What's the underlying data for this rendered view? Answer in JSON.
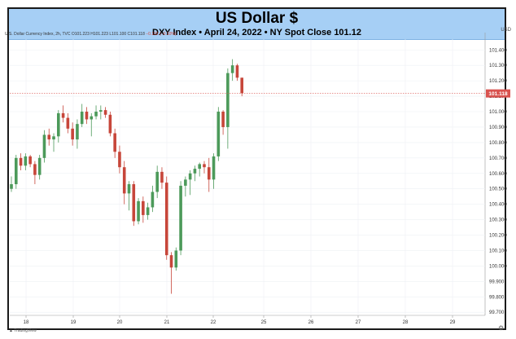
{
  "header": {
    "title": "US Dollar $",
    "subtitle": "DXY Index • April 24, 2022 • NY Spot Close 101.12"
  },
  "infoline": {
    "text": "U.S. Dollar Currency Index, 2h, TVC",
    "ohlc": "O101.223 H101.223 L101.100 C101.118",
    "change": "−0.102 (−0.10%)"
  },
  "axis_currency": "USD",
  "last_price_label": "101.118",
  "footer": {
    "logo_text": "TradingView"
  },
  "colors": {
    "up": "#4c9a5a",
    "down": "#c7463a",
    "header_bg": "#a6cff5",
    "price_tag": "#d9534f"
  },
  "chart_data": {
    "type": "candlestick",
    "title": "US Dollar $",
    "subtitle": "DXY Index • April 24, 2022 • NY Spot Close 101.12",
    "x_ticks": [
      "18",
      "19",
      "20",
      "21",
      "22",
      "25",
      "26",
      "27",
      "28",
      "29"
    ],
    "y_ticks": [
      "99.700",
      "99.800",
      "99.900",
      "100.000",
      "100.100",
      "100.200",
      "100.300",
      "100.400",
      "100.500",
      "100.600",
      "100.700",
      "100.800",
      "100.900",
      "101.000",
      "101.100",
      "101.200",
      "101.300",
      "101.400"
    ],
    "ylim": [
      99.68,
      101.47
    ],
    "last_price": 101.118,
    "candles": [
      {
        "o": 100.5,
        "h": 100.58,
        "l": 100.48,
        "c": 100.53
      },
      {
        "o": 100.53,
        "h": 100.72,
        "l": 100.5,
        "c": 100.7
      },
      {
        "o": 100.7,
        "h": 100.73,
        "l": 100.62,
        "c": 100.65
      },
      {
        "o": 100.65,
        "h": 100.73,
        "l": 100.62,
        "c": 100.71
      },
      {
        "o": 100.71,
        "h": 100.72,
        "l": 100.64,
        "c": 100.66
      },
      {
        "o": 100.66,
        "h": 100.68,
        "l": 100.53,
        "c": 100.59
      },
      {
        "o": 100.59,
        "h": 100.72,
        "l": 100.56,
        "c": 100.7
      },
      {
        "o": 100.7,
        "h": 100.88,
        "l": 100.67,
        "c": 100.85
      },
      {
        "o": 100.85,
        "h": 100.89,
        "l": 100.78,
        "c": 100.82
      },
      {
        "o": 100.82,
        "h": 100.86,
        "l": 100.74,
        "c": 100.84
      },
      {
        "o": 100.84,
        "h": 101.01,
        "l": 100.8,
        "c": 100.99
      },
      {
        "o": 100.99,
        "h": 101.04,
        "l": 100.93,
        "c": 100.96
      },
      {
        "o": 100.96,
        "h": 100.99,
        "l": 100.86,
        "c": 100.89
      },
      {
        "o": 100.89,
        "h": 100.93,
        "l": 100.78,
        "c": 100.82
      },
      {
        "o": 100.82,
        "h": 100.95,
        "l": 100.76,
        "c": 100.92
      },
      {
        "o": 100.92,
        "h": 101.05,
        "l": 100.9,
        "c": 101.0
      },
      {
        "o": 101.0,
        "h": 101.03,
        "l": 100.92,
        "c": 100.95
      },
      {
        "o": 100.95,
        "h": 100.99,
        "l": 100.84,
        "c": 100.97
      },
      {
        "o": 100.97,
        "h": 101.04,
        "l": 100.95,
        "c": 101.0
      },
      {
        "o": 101.0,
        "h": 101.04,
        "l": 100.95,
        "c": 101.01
      },
      {
        "o": 101.01,
        "h": 101.03,
        "l": 100.96,
        "c": 100.98
      },
      {
        "o": 100.98,
        "h": 101.0,
        "l": 100.84,
        "c": 100.86
      },
      {
        "o": 100.86,
        "h": 100.89,
        "l": 100.7,
        "c": 100.74
      },
      {
        "o": 100.74,
        "h": 100.78,
        "l": 100.6,
        "c": 100.64
      },
      {
        "o": 100.64,
        "h": 100.68,
        "l": 100.4,
        "c": 100.47
      },
      {
        "o": 100.47,
        "h": 100.55,
        "l": 100.36,
        "c": 100.53
      },
      {
        "o": 100.53,
        "h": 100.55,
        "l": 100.26,
        "c": 100.29
      },
      {
        "o": 100.29,
        "h": 100.44,
        "l": 100.27,
        "c": 100.42
      },
      {
        "o": 100.42,
        "h": 100.45,
        "l": 100.28,
        "c": 100.33
      },
      {
        "o": 100.33,
        "h": 100.41,
        "l": 100.3,
        "c": 100.38
      },
      {
        "o": 100.38,
        "h": 100.52,
        "l": 100.35,
        "c": 100.48
      },
      {
        "o": 100.48,
        "h": 100.65,
        "l": 100.44,
        "c": 100.61
      },
      {
        "o": 100.61,
        "h": 100.64,
        "l": 100.5,
        "c": 100.54
      },
      {
        "o": 100.54,
        "h": 100.58,
        "l": 100.04,
        "c": 100.07
      },
      {
        "o": 100.07,
        "h": 100.09,
        "l": 99.82,
        "c": 99.99
      },
      {
        "o": 99.99,
        "h": 100.12,
        "l": 99.97,
        "c": 100.1
      },
      {
        "o": 100.1,
        "h": 100.55,
        "l": 100.07,
        "c": 100.52
      },
      {
        "o": 100.52,
        "h": 100.58,
        "l": 100.45,
        "c": 100.56
      },
      {
        "o": 100.56,
        "h": 100.62,
        "l": 100.46,
        "c": 100.6
      },
      {
        "o": 100.6,
        "h": 100.65,
        "l": 100.55,
        "c": 100.63
      },
      {
        "o": 100.63,
        "h": 100.67,
        "l": 100.58,
        "c": 100.66
      },
      {
        "o": 100.66,
        "h": 100.68,
        "l": 100.6,
        "c": 100.64
      },
      {
        "o": 100.64,
        "h": 100.7,
        "l": 100.48,
        "c": 100.56
      },
      {
        "o": 100.56,
        "h": 100.73,
        "l": 100.5,
        "c": 100.71
      },
      {
        "o": 100.71,
        "h": 101.03,
        "l": 100.68,
        "c": 101.0
      },
      {
        "o": 101.0,
        "h": 101.01,
        "l": 100.85,
        "c": 100.9
      },
      {
        "o": 100.9,
        "h": 101.28,
        "l": 100.76,
        "c": 101.25
      },
      {
        "o": 101.25,
        "h": 101.34,
        "l": 101.2,
        "c": 101.3
      },
      {
        "o": 101.3,
        "h": 101.31,
        "l": 101.2,
        "c": 101.22
      },
      {
        "o": 101.22,
        "h": 101.22,
        "l": 101.1,
        "c": 101.12
      }
    ]
  }
}
